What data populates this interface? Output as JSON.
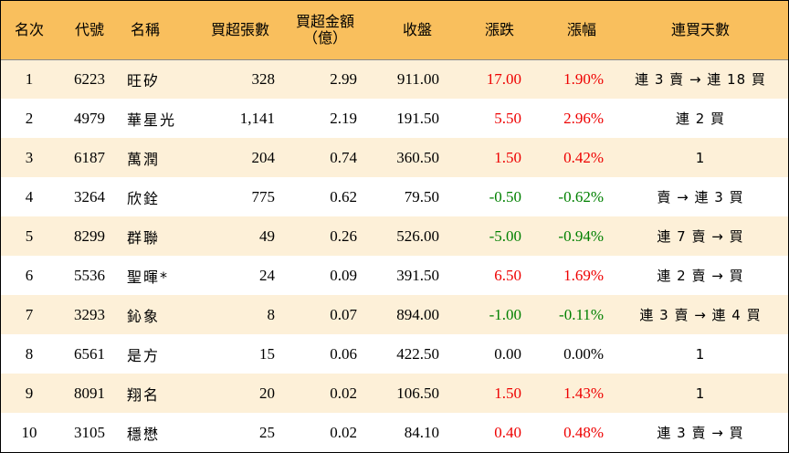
{
  "headers": {
    "rank": "名次",
    "code": "代號",
    "name": "名稱",
    "net_lots": "買超張數",
    "net_amount_line1": "買超金額",
    "net_amount_line2": "（億）",
    "close": "收盤",
    "change": "漲跌",
    "pct": "漲幅",
    "streak": "連買天數"
  },
  "rows": [
    {
      "rank": "1",
      "code": "6223",
      "name": "旺矽",
      "lots": "328",
      "amount": "2.99",
      "close": "911.00",
      "change": "17.00",
      "pct": "1.90%",
      "dir": "up",
      "streak": "連 3 賣 → 連 18 買"
    },
    {
      "rank": "2",
      "code": "4979",
      "name": "華星光",
      "lots": "1,141",
      "amount": "2.19",
      "close": "191.50",
      "change": "5.50",
      "pct": "2.96%",
      "dir": "up",
      "streak": "連 2 買"
    },
    {
      "rank": "3",
      "code": "6187",
      "name": "萬潤",
      "lots": "204",
      "amount": "0.74",
      "close": "360.50",
      "change": "1.50",
      "pct": "0.42%",
      "dir": "up",
      "streak": "1"
    },
    {
      "rank": "4",
      "code": "3264",
      "name": "欣銓",
      "lots": "775",
      "amount": "0.62",
      "close": "79.50",
      "change": "-0.50",
      "pct": "-0.62%",
      "dir": "down",
      "streak": "賣 → 連 3 買"
    },
    {
      "rank": "5",
      "code": "8299",
      "name": "群聯",
      "lots": "49",
      "amount": "0.26",
      "close": "526.00",
      "change": "-5.00",
      "pct": "-0.94%",
      "dir": "down",
      "streak": "連 7 賣 → 買"
    },
    {
      "rank": "6",
      "code": "5536",
      "name": "聖暉*",
      "lots": "24",
      "amount": "0.09",
      "close": "391.50",
      "change": "6.50",
      "pct": "1.69%",
      "dir": "up",
      "streak": "連 2 賣 → 買"
    },
    {
      "rank": "7",
      "code": "3293",
      "name": "鈊象",
      "lots": "8",
      "amount": "0.07",
      "close": "894.00",
      "change": "-1.00",
      "pct": "-0.11%",
      "dir": "down",
      "streak": "連 3 賣 → 連 4 買"
    },
    {
      "rank": "8",
      "code": "6561",
      "name": "是方",
      "lots": "15",
      "amount": "0.06",
      "close": "422.50",
      "change": "0.00",
      "pct": "0.00%",
      "dir": "flat",
      "streak": "1"
    },
    {
      "rank": "9",
      "code": "8091",
      "name": "翔名",
      "lots": "20",
      "amount": "0.02",
      "close": "106.50",
      "change": "1.50",
      "pct": "1.43%",
      "dir": "up",
      "streak": "1"
    },
    {
      "rank": "10",
      "code": "3105",
      "name": "穩懋",
      "lots": "25",
      "amount": "0.02",
      "close": "84.10",
      "change": "0.40",
      "pct": "0.48%",
      "dir": "up",
      "streak": "連 3 賣 → 買"
    }
  ],
  "colors": {
    "header_bg": "#f9bf5d",
    "odd_row_bg": "#fdf0d8",
    "up": "#ee0000",
    "down": "#008000"
  }
}
